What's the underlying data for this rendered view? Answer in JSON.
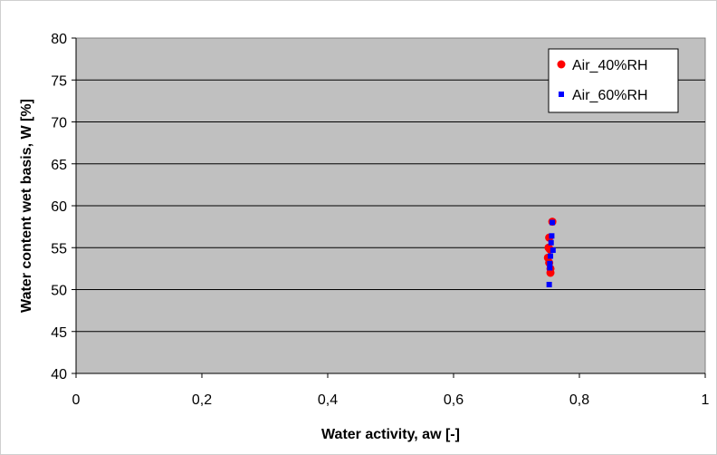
{
  "chart_data": {
    "type": "scatter",
    "xlabel": "Water activity, aw [-]",
    "ylabel": "Water content wet basis, W [%]",
    "xlim": [
      0,
      1
    ],
    "ylim": [
      40,
      80
    ],
    "x_ticks": [
      "0",
      "0,2",
      "0,4",
      "0,6",
      "0,8",
      "1"
    ],
    "y_ticks": [
      "40",
      "45",
      "50",
      "55",
      "60",
      "65",
      "70",
      "75",
      "80"
    ],
    "grid": "horizontal",
    "legend_position": "top-right",
    "plot_background": "#c0c0c0",
    "series": [
      {
        "name": "Air_40%RH",
        "marker": "circle",
        "color": "#ff0000",
        "points": [
          {
            "x": 0.757,
            "y": 58.1
          },
          {
            "x": 0.752,
            "y": 56.2
          },
          {
            "x": 0.751,
            "y": 55.0
          },
          {
            "x": 0.753,
            "y": 54.8
          },
          {
            "x": 0.75,
            "y": 53.8
          },
          {
            "x": 0.752,
            "y": 53.2
          },
          {
            "x": 0.754,
            "y": 52.5
          },
          {
            "x": 0.754,
            "y": 52.0
          }
        ]
      },
      {
        "name": "Air_60%RH",
        "marker": "square",
        "color": "#0000ff",
        "points": [
          {
            "x": 0.757,
            "y": 58.0
          },
          {
            "x": 0.756,
            "y": 56.4
          },
          {
            "x": 0.755,
            "y": 55.6
          },
          {
            "x": 0.758,
            "y": 54.7
          },
          {
            "x": 0.754,
            "y": 54.0
          },
          {
            "x": 0.753,
            "y": 53.1
          },
          {
            "x": 0.753,
            "y": 52.6
          },
          {
            "x": 0.752,
            "y": 50.6
          }
        ]
      }
    ]
  }
}
